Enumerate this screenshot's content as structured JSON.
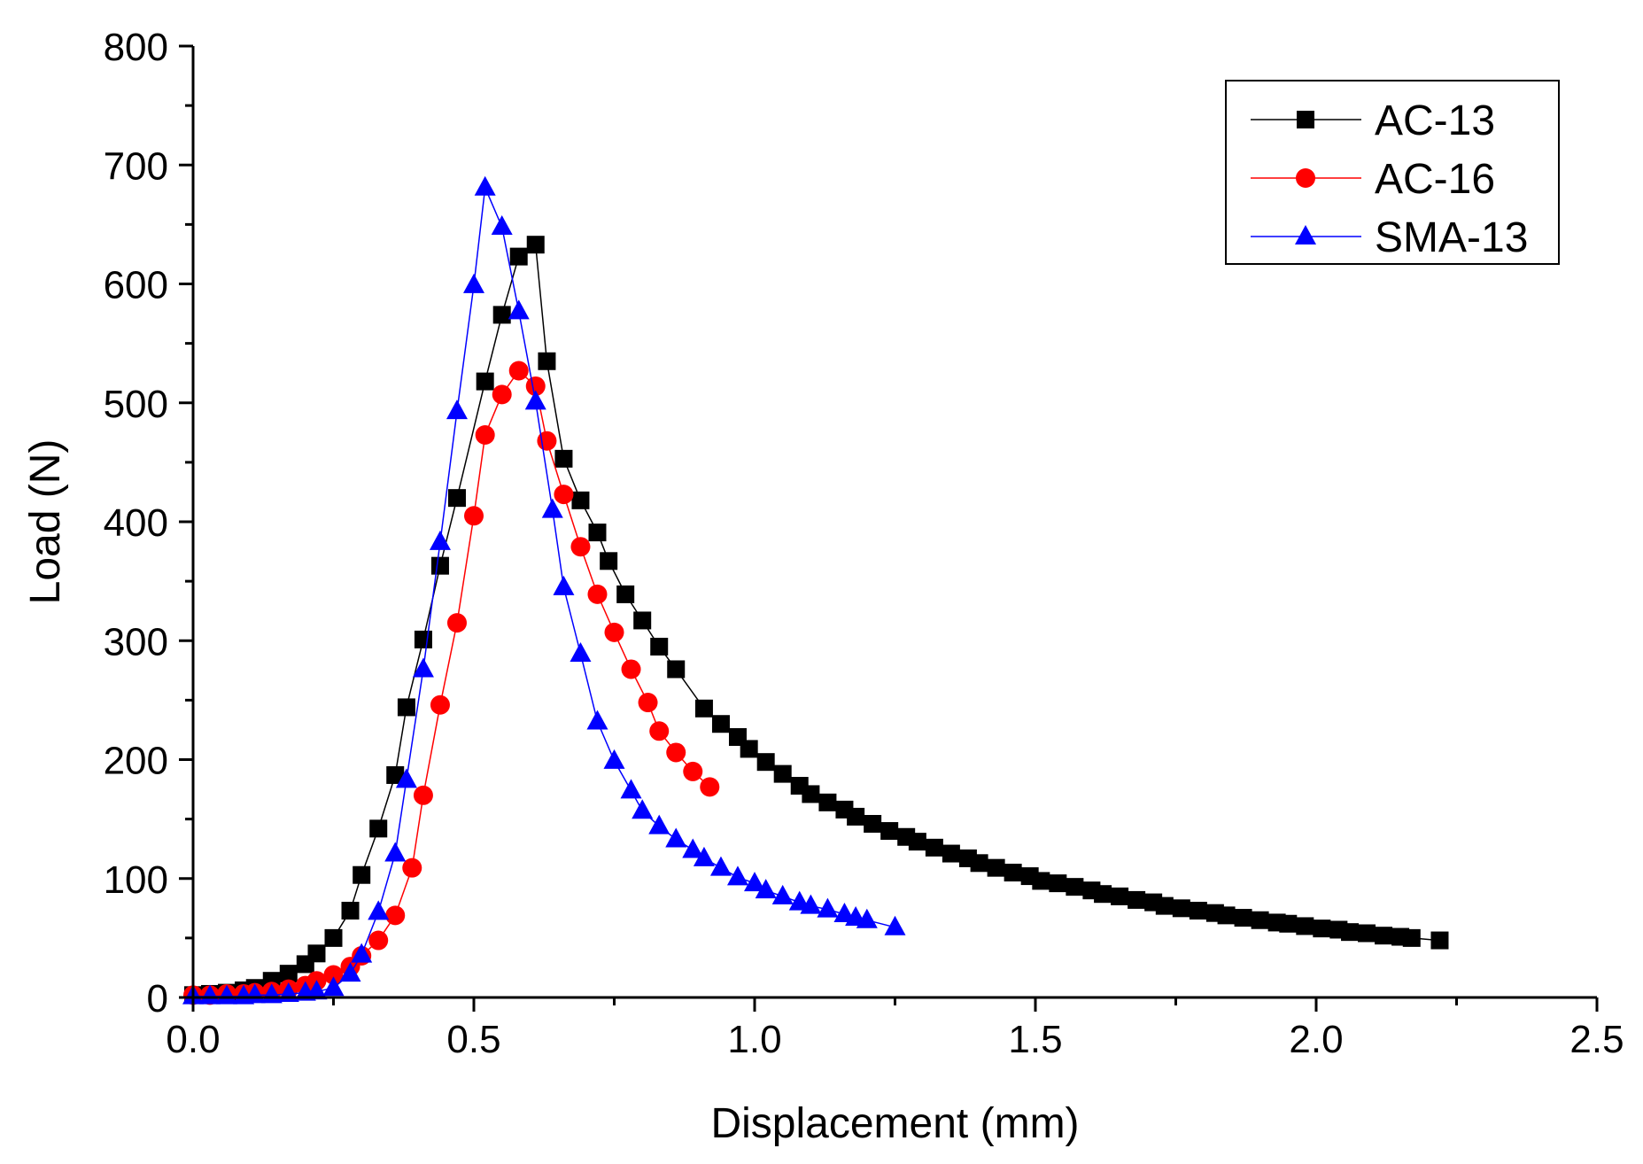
{
  "chart_data": {
    "type": "line",
    "title": "",
    "xlabel": "Displacement  (mm)",
    "ylabel": "Load  (N)",
    "xlim": [
      0,
      2.5
    ],
    "ylim": [
      0,
      800
    ],
    "x_ticks": [
      "0.0",
      "0.5",
      "1.0",
      "1.5",
      "2.0",
      "2.5"
    ],
    "y_ticks": [
      "0",
      "100",
      "200",
      "300",
      "400",
      "500",
      "600",
      "700",
      "800"
    ],
    "legend_position": "top-right",
    "series": [
      {
        "name": "AC-13",
        "color": "#000000",
        "marker": "square",
        "points": [
          [
            0.0,
            2
          ],
          [
            0.03,
            3
          ],
          [
            0.06,
            4
          ],
          [
            0.09,
            6
          ],
          [
            0.11,
            8
          ],
          [
            0.14,
            14
          ],
          [
            0.17,
            20
          ],
          [
            0.2,
            28
          ],
          [
            0.22,
            37
          ],
          [
            0.25,
            50
          ],
          [
            0.28,
            73
          ],
          [
            0.3,
            103
          ],
          [
            0.33,
            142
          ],
          [
            0.36,
            187
          ],
          [
            0.38,
            244
          ],
          [
            0.41,
            301
          ],
          [
            0.44,
            363
          ],
          [
            0.47,
            420
          ],
          [
            0.52,
            518
          ],
          [
            0.55,
            574
          ],
          [
            0.58,
            623
          ],
          [
            0.61,
            633
          ],
          [
            0.63,
            535
          ],
          [
            0.66,
            453
          ],
          [
            0.69,
            418
          ],
          [
            0.72,
            391
          ],
          [
            0.74,
            367
          ],
          [
            0.77,
            339
          ],
          [
            0.8,
            317
          ],
          [
            0.83,
            295
          ],
          [
            0.86,
            276
          ],
          [
            0.91,
            243
          ],
          [
            0.94,
            230
          ],
          [
            0.97,
            219
          ],
          [
            0.99,
            209
          ],
          [
            1.02,
            198
          ],
          [
            1.05,
            188
          ],
          [
            1.08,
            178
          ],
          [
            1.1,
            171
          ],
          [
            1.13,
            164
          ],
          [
            1.16,
            158
          ],
          [
            1.18,
            152
          ],
          [
            1.21,
            146
          ],
          [
            1.24,
            140
          ],
          [
            1.27,
            135
          ],
          [
            1.29,
            131
          ],
          [
            1.32,
            126
          ],
          [
            1.35,
            121
          ],
          [
            1.38,
            117
          ],
          [
            1.4,
            113
          ],
          [
            1.43,
            109
          ],
          [
            1.46,
            105
          ],
          [
            1.49,
            102
          ],
          [
            1.51,
            98
          ],
          [
            1.54,
            96
          ],
          [
            1.57,
            93
          ],
          [
            1.6,
            90
          ],
          [
            1.62,
            87
          ],
          [
            1.65,
            85
          ],
          [
            1.68,
            82
          ],
          [
            1.71,
            80
          ],
          [
            1.73,
            77
          ],
          [
            1.76,
            75
          ],
          [
            1.79,
            73
          ],
          [
            1.82,
            71
          ],
          [
            1.84,
            69
          ],
          [
            1.87,
            67
          ],
          [
            1.9,
            65
          ],
          [
            1.93,
            63
          ],
          [
            1.95,
            62
          ],
          [
            1.98,
            60
          ],
          [
            2.01,
            58
          ],
          [
            2.04,
            57
          ],
          [
            2.06,
            55
          ],
          [
            2.09,
            54
          ],
          [
            2.12,
            52
          ],
          [
            2.15,
            51
          ],
          [
            2.17,
            50
          ],
          [
            2.22,
            48
          ]
        ]
      },
      {
        "name": "AC-16",
        "color": "#ff0000",
        "marker": "circle",
        "points": [
          [
            0.0,
            2
          ],
          [
            0.03,
            2
          ],
          [
            0.06,
            3
          ],
          [
            0.09,
            3
          ],
          [
            0.11,
            4
          ],
          [
            0.14,
            5
          ],
          [
            0.17,
            7
          ],
          [
            0.2,
            10
          ],
          [
            0.22,
            14
          ],
          [
            0.25,
            19
          ],
          [
            0.28,
            26
          ],
          [
            0.3,
            35
          ],
          [
            0.33,
            48
          ],
          [
            0.36,
            69
          ],
          [
            0.39,
            109
          ],
          [
            0.41,
            170
          ],
          [
            0.44,
            246
          ],
          [
            0.47,
            315
          ],
          [
            0.5,
            405
          ],
          [
            0.52,
            473
          ],
          [
            0.55,
            507
          ],
          [
            0.58,
            527
          ],
          [
            0.61,
            514
          ],
          [
            0.63,
            468
          ],
          [
            0.66,
            423
          ],
          [
            0.69,
            379
          ],
          [
            0.72,
            339
          ],
          [
            0.75,
            307
          ],
          [
            0.78,
            276
          ],
          [
            0.81,
            248
          ],
          [
            0.83,
            224
          ],
          [
            0.86,
            206
          ],
          [
            0.89,
            190
          ],
          [
            0.92,
            177
          ]
        ]
      },
      {
        "name": "SMA-13",
        "color": "#0000ff",
        "marker": "triangle",
        "points": [
          [
            0.0,
            1
          ],
          [
            0.03,
            1
          ],
          [
            0.06,
            1
          ],
          [
            0.09,
            1
          ],
          [
            0.11,
            2
          ],
          [
            0.14,
            2
          ],
          [
            0.17,
            3
          ],
          [
            0.2,
            4
          ],
          [
            0.22,
            5
          ],
          [
            0.25,
            8
          ],
          [
            0.28,
            20
          ],
          [
            0.3,
            36
          ],
          [
            0.33,
            72
          ],
          [
            0.36,
            121
          ],
          [
            0.38,
            183
          ],
          [
            0.41,
            276
          ],
          [
            0.44,
            383
          ],
          [
            0.47,
            493
          ],
          [
            0.5,
            599
          ],
          [
            0.52,
            681
          ],
          [
            0.55,
            648
          ],
          [
            0.58,
            577
          ],
          [
            0.61,
            501
          ],
          [
            0.64,
            410
          ],
          [
            0.66,
            345
          ],
          [
            0.69,
            289
          ],
          [
            0.72,
            232
          ],
          [
            0.75,
            199
          ],
          [
            0.78,
            174
          ],
          [
            0.8,
            157
          ],
          [
            0.83,
            144
          ],
          [
            0.86,
            133
          ],
          [
            0.89,
            124
          ],
          [
            0.91,
            117
          ],
          [
            0.94,
            109
          ],
          [
            0.97,
            101
          ],
          [
            1.0,
            96
          ],
          [
            1.02,
            90
          ],
          [
            1.05,
            85
          ],
          [
            1.08,
            80
          ],
          [
            1.1,
            77
          ],
          [
            1.13,
            74
          ],
          [
            1.16,
            70
          ],
          [
            1.18,
            67
          ],
          [
            1.2,
            65
          ],
          [
            1.25,
            59
          ]
        ]
      }
    ]
  }
}
